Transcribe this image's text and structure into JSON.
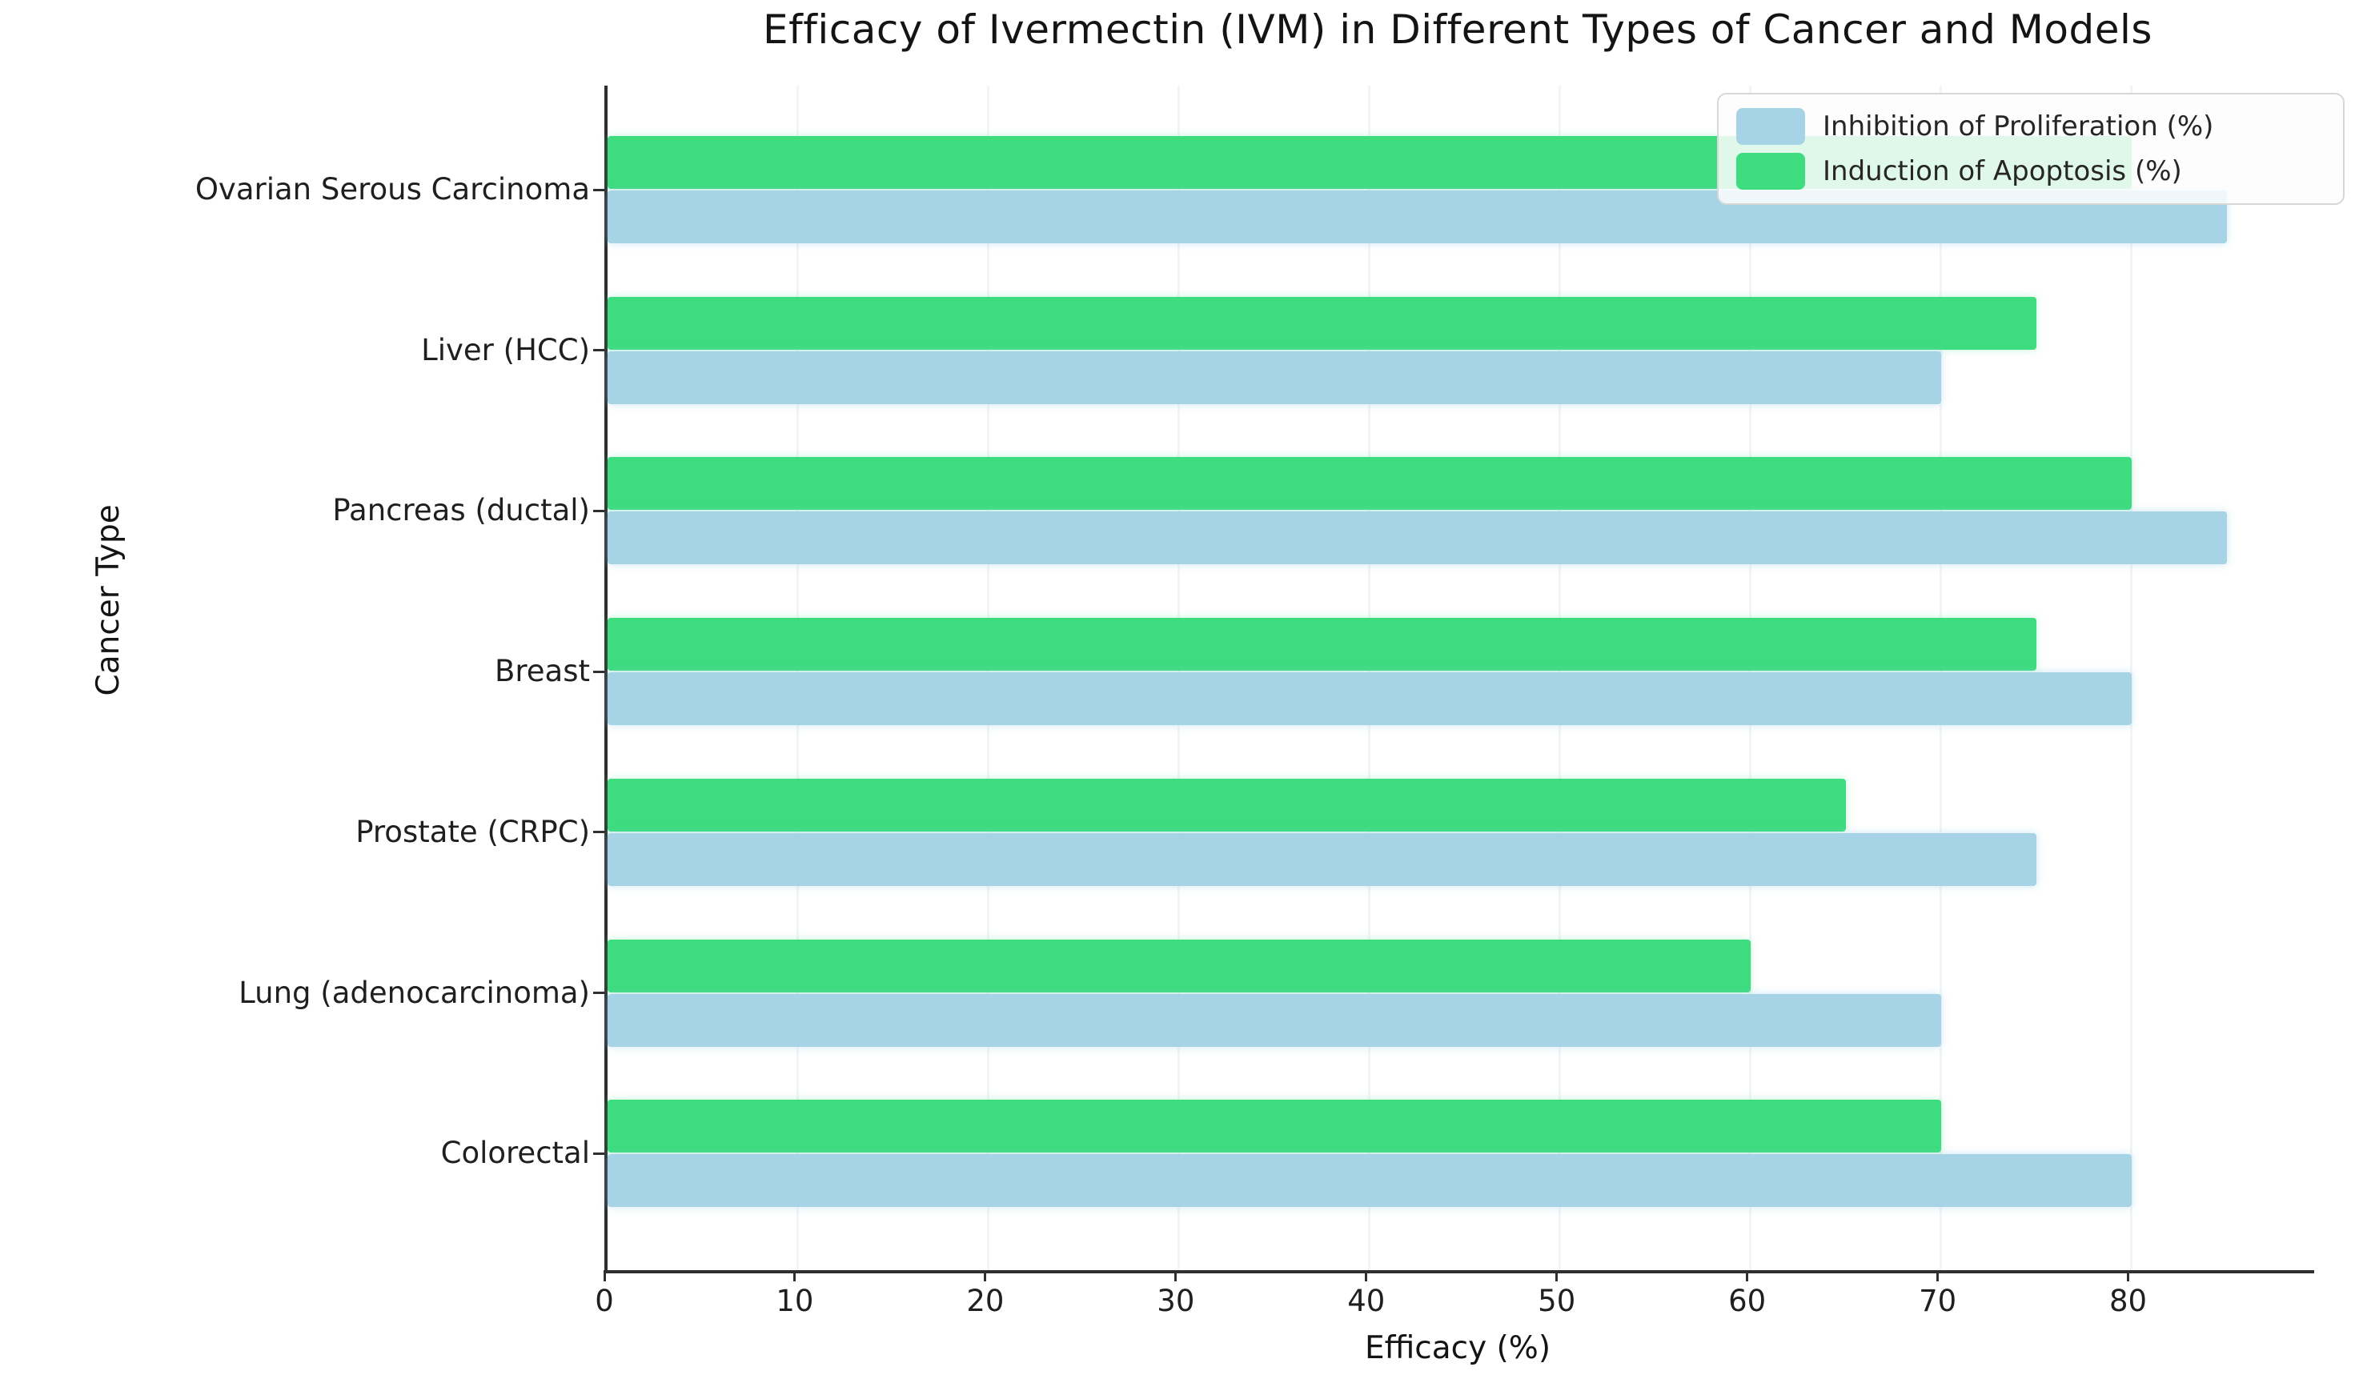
{
  "chart_data": {
    "type": "bar",
    "orientation": "horizontal",
    "title": "Efficacy of Ivermectin (IVM) in Different Types of Cancer and Models",
    "xlabel": "Efficacy (%)",
    "ylabel": "Cancer Type",
    "categories": [
      "Ovarian Serous Carcinoma",
      "Liver (HCC)",
      "Pancreas (ductal)",
      "Breast",
      "Prostate (CRPC)",
      "Lung (adenocarcinoma)",
      "Colorectal"
    ],
    "series": [
      {
        "name": "Inhibition of Proliferation (%)",
        "color": "#a6d4e6",
        "values": [
          85,
          70,
          85,
          80,
          75,
          70,
          80
        ]
      },
      {
        "name": "Induction of Apoptosis (%)",
        "color": "#3ddc7e",
        "values": [
          80,
          75,
          80,
          75,
          65,
          60,
          70
        ]
      }
    ],
    "xlim": [
      0,
      89.6
    ],
    "xticks": [
      0,
      10,
      20,
      30,
      40,
      50,
      60,
      70,
      80
    ],
    "legend_position": "upper right",
    "grid": false,
    "axis_color": "#2f2f2f",
    "group_layout": "apoptosis bar above proliferation bar in each category"
  }
}
